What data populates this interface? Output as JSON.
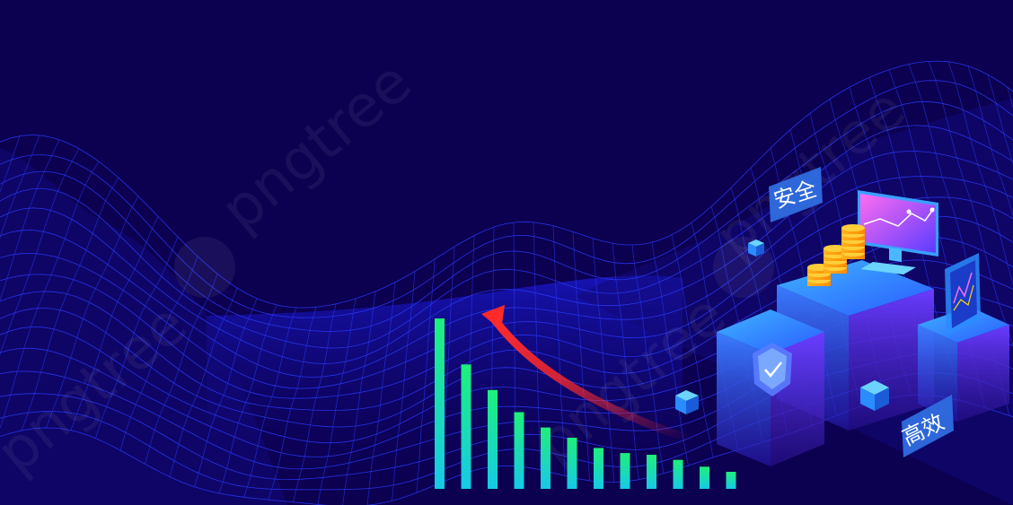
{
  "scene": {
    "tags": {
      "safety": "安全",
      "efficient": "高效"
    },
    "watermark": "pngtree",
    "colors": {
      "background": "#0c0050",
      "grid": "#2a3cff",
      "bar_top": "#1ef07a",
      "bar_bottom": "#16c9e8",
      "arrow": "#ff2a2a",
      "cube": "#2b6cff",
      "tag_bg": "#2f6de0"
    },
    "icons": [
      "shield-check-icon",
      "monitor-icon",
      "coin-stack-icon",
      "phone-icon",
      "cube-icon"
    ]
  },
  "chart_data": {
    "type": "bar",
    "values": [
      100,
      73,
      58,
      45,
      36,
      30,
      24,
      21,
      20,
      17,
      13,
      10
    ]
  }
}
